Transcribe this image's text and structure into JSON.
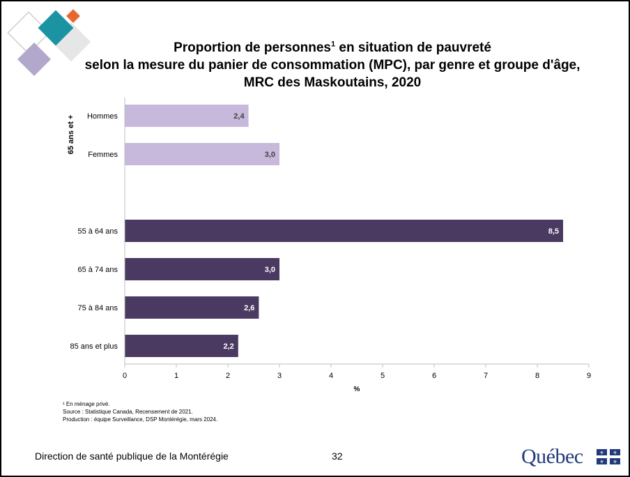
{
  "colors": {
    "group_65plus": "#c7b9dc",
    "age_groups": "#4a3a62",
    "axis": "#bfbfbf",
    "quebec_blue": "#223a7a",
    "teal": "#1b93a3",
    "orange": "#e8672d",
    "lavender": "#b2a8cc",
    "grey_square": "#d9d9d9"
  },
  "title": {
    "line1_pre": "Proportion de personnes",
    "line1_sup": "1",
    "line1_post": " en situation de pauvreté",
    "line2": "selon la mesure du panier de consommation (MPC), par genre et groupe d'âge,",
    "line3": "MRC des Maskoutains, 2020"
  },
  "chart_data": {
    "type": "bar",
    "orientation": "horizontal",
    "group_label": "65 ans et +",
    "categories": [
      "Hommes",
      "Femmes",
      "55 à 64 ans",
      "65 à 74 ans",
      "75 à 84 ans",
      "85 ans et plus"
    ],
    "values": [
      2.4,
      3.0,
      8.5,
      3.0,
      2.6,
      2.2
    ],
    "value_labels": [
      "2,4",
      "3,0",
      "8,5",
      "3,0",
      "2,6",
      "2,2"
    ],
    "series_group": [
      "65plus",
      "65plus",
      "age",
      "age",
      "age",
      "age"
    ],
    "xlabel": "%",
    "xlim": [
      0,
      9
    ],
    "xticks": [
      "0",
      "1",
      "2",
      "3",
      "4",
      "5",
      "6",
      "7",
      "8",
      "9"
    ],
    "grid": false
  },
  "notes": [
    "¹ En ménage privé.",
    "Source : Statistique Canada, Recensement de 2021.",
    "Production : équipe Surveillance, DSP Montérégie, mars 2024."
  ],
  "footer": {
    "organization": "Direction de santé publique de la Montérégie",
    "page_number": "32",
    "logo_text": "Québec"
  }
}
